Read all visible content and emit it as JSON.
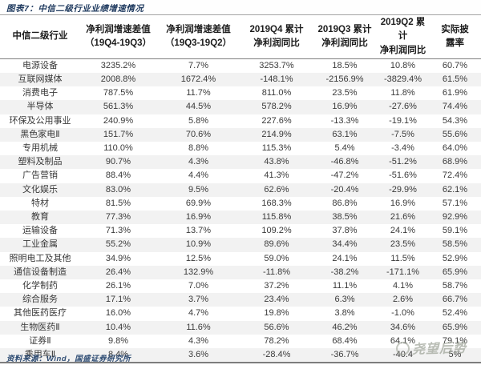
{
  "title": "图表7：中信二级行业业绩增速情况",
  "source": "资料来源：Wind，国盛证券研究所",
  "watermark": {
    "text": "尧望后势"
  },
  "colors": {
    "title_navy": "#1f3a5f",
    "header_text": "#1c1c1c",
    "body_text": "#3a3a3a",
    "row_stripe": "#f2f2f2",
    "rule_dark": "#7d7d7d",
    "rule_light": "#a3a3a3",
    "watermark_gray": "#9ea398"
  },
  "table": {
    "headers": [
      {
        "line1": "中信二级行业",
        "line2": ""
      },
      {
        "line1": "净利润增速差值",
        "line2": "（19Q4-19Q3）"
      },
      {
        "line1": "净利润增速差值",
        "line2": "（19Q3-19Q2）"
      },
      {
        "line1": "2019Q4 累计",
        "line2": "净利润同比"
      },
      {
        "line1": "2019Q3 累计",
        "line2": "净利润同比"
      },
      {
        "line1": "2019Q2 累计",
        "line2": "净利润同比"
      },
      {
        "line1": "实际披",
        "line2": "露率"
      }
    ],
    "rows": [
      [
        "电源设备",
        "3235.2%",
        "7.7%",
        "3253.7%",
        "18.5%",
        "10.8%",
        "60.7%"
      ],
      [
        "互联网媒体",
        "2008.8%",
        "1672.4%",
        "-148.1%",
        "-2156.9%",
        "-3829.4%",
        "61.5%"
      ],
      [
        "消费电子",
        "787.5%",
        "11.7%",
        "811.0%",
        "23.5%",
        "11.8%",
        "61.9%"
      ],
      [
        "半导体",
        "561.3%",
        "44.5%",
        "578.2%",
        "16.9%",
        "-27.6%",
        "74.4%"
      ],
      [
        "环保及公用事业",
        "240.9%",
        "5.8%",
        "227.6%",
        "-13.3%",
        "-19.1%",
        "54.3%"
      ],
      [
        "黑色家电Ⅱ",
        "151.7%",
        "70.6%",
        "214.9%",
        "63.1%",
        "-7.5%",
        "55.6%"
      ],
      [
        "专用机械",
        "110.0%",
        "8.8%",
        "115.3%",
        "5.4%",
        "-3.4%",
        "64.0%"
      ],
      [
        "塑料及制品",
        "90.7%",
        "4.3%",
        "43.8%",
        "-46.8%",
        "-51.2%",
        "68.9%"
      ],
      [
        "广告营销",
        "88.4%",
        "4.4%",
        "41.3%",
        "-47.2%",
        "-51.6%",
        "72.4%"
      ],
      [
        "文化娱乐",
        "83.0%",
        "9.5%",
        "62.6%",
        "-20.4%",
        "-29.9%",
        "62.1%"
      ],
      [
        "特材",
        "81.5%",
        "69.9%",
        "168.3%",
        "86.8%",
        "16.9%",
        "57.1%"
      ],
      [
        "教育",
        "77.3%",
        "16.9%",
        "115.8%",
        "38.5%",
        "21.6%",
        "92.9%"
      ],
      [
        "运输设备",
        "71.3%",
        "13.7%",
        "109.2%",
        "37.8%",
        "24.1%",
        "59.1%"
      ],
      [
        "工业金属",
        "55.2%",
        "10.9%",
        "89.6%",
        "34.4%",
        "23.5%",
        "58.5%"
      ],
      [
        "照明电工及其他",
        "34.9%",
        "12.5%",
        "59.0%",
        "24.1%",
        "11.5%",
        "52.9%"
      ],
      [
        "通信设备制造",
        "26.4%",
        "132.9%",
        "-11.8%",
        "-38.2%",
        "-171.1%",
        "65.9%"
      ],
      [
        "化学制药",
        "26.1%",
        "7.0%",
        "37.2%",
        "11.1%",
        "4.1%",
        "58.7%"
      ],
      [
        "综合服务",
        "17.1%",
        "3.7%",
        "23.4%",
        "6.3%",
        "2.6%",
        "66.7%"
      ],
      [
        "其他医药医疗",
        "16.0%",
        "4.7%",
        "19.8%",
        "3.8%",
        "-1.0%",
        "52.4%"
      ],
      [
        "生物医药Ⅱ",
        "10.4%",
        "11.6%",
        "56.6%",
        "46.2%",
        "34.6%",
        "65.9%"
      ],
      [
        "证券Ⅱ",
        "9.8%",
        "4.3%",
        "78.2%",
        "68.4%",
        "64.1%",
        "79.1%"
      ],
      [
        "乘用车Ⅱ",
        "8.4%",
        "3.6%",
        "-28.4%",
        "-36.7%",
        "-40.4",
        "5%"
      ]
    ]
  }
}
